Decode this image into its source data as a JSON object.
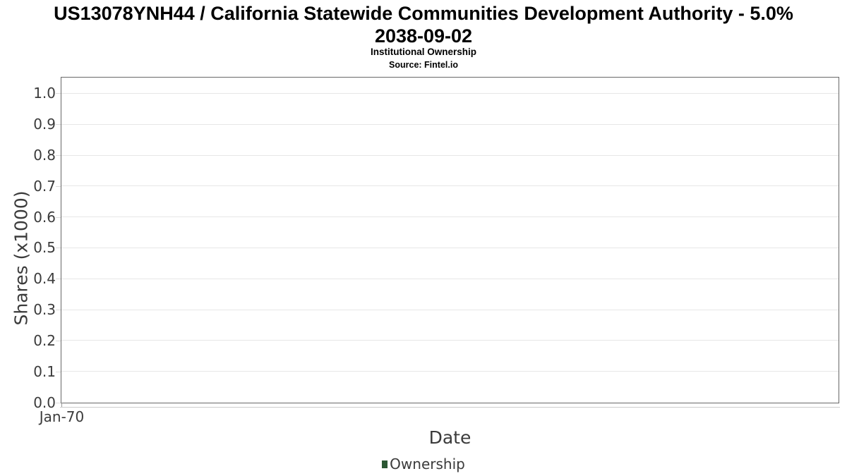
{
  "chart": {
    "title_lines": [
      "US13078YNH44 / California Statewide Communities Development Authority - 5.0%",
      "2038-09-02"
    ],
    "subtitle": "Institutional Ownership",
    "source": "Source: Fintel.io"
  },
  "chart_data": {
    "type": "bar",
    "title": "US13078YNH44 / California Statewide Communities Development Authority - 5.0% 2038-09-02",
    "subtitle": "Institutional Ownership",
    "source_note": "Source: Fintel.io",
    "xlabel": "Date",
    "ylabel": "Shares (x1000)",
    "categories": [],
    "series": [
      {
        "name": "Ownership",
        "color": "#2b5733",
        "values": []
      }
    ],
    "xticks": [
      {
        "pos": 0.0,
        "label": "Jan-70"
      }
    ],
    "yticks": [
      {
        "v": 0.0,
        "label": "0.0"
      },
      {
        "v": 0.1,
        "label": "0.1"
      },
      {
        "v": 0.2,
        "label": "0.2"
      },
      {
        "v": 0.3,
        "label": "0.3"
      },
      {
        "v": 0.4,
        "label": "0.4"
      },
      {
        "v": 0.5,
        "label": "0.5"
      },
      {
        "v": 0.6,
        "label": "0.6"
      },
      {
        "v": 0.7,
        "label": "0.7"
      },
      {
        "v": 0.8,
        "label": "0.8"
      },
      {
        "v": 0.9,
        "label": "0.9"
      },
      {
        "v": 1.0,
        "label": "1.0"
      }
    ],
    "ylim": [
      0,
      1.05
    ],
    "grid": "horizontal",
    "legend_position": "bottom",
    "colors": {
      "axis_border": "#686868",
      "gridline": "#e7e7e7",
      "tick_text": "#3b3b3b",
      "title_text": "#000000",
      "series_green": "#2b5733"
    }
  }
}
